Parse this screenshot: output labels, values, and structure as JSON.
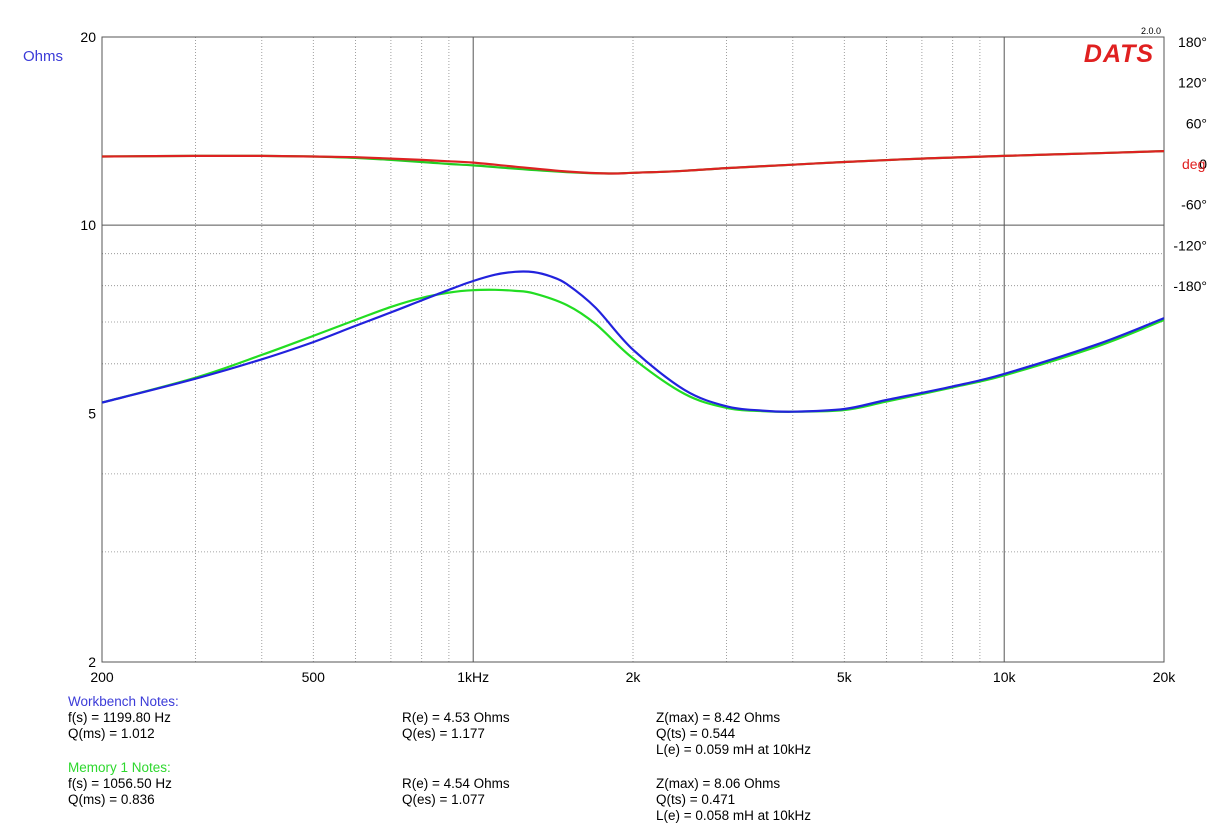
{
  "header": {
    "y_unit_label": "Ohms",
    "phase_unit_label": "deg",
    "version": "2.0.0",
    "logo_text": "DATS"
  },
  "chart_data": {
    "type": "line",
    "x_scale": "log",
    "y_scale": "log",
    "xlim": [
      200,
      20000
    ],
    "ylim": [
      2,
      20
    ],
    "phase_lim": [
      -180,
      180
    ],
    "grid": true,
    "x_tick_labels": [
      {
        "value": 200,
        "label": "200"
      },
      {
        "value": 500,
        "label": "500"
      },
      {
        "value": 1000,
        "label": "1kHz"
      },
      {
        "value": 2000,
        "label": "2k"
      },
      {
        "value": 5000,
        "label": "5k"
      },
      {
        "value": 10000,
        "label": "10k"
      },
      {
        "value": 20000,
        "label": "20k"
      }
    ],
    "y_tick_labels": [
      {
        "value": 20,
        "label": "20"
      },
      {
        "value": 10,
        "label": "10"
      },
      {
        "value": 5,
        "label": "5"
      },
      {
        "value": 2,
        "label": "2"
      }
    ],
    "phase_tick_labels": [
      {
        "value": 180,
        "label": "180°"
      },
      {
        "value": 120,
        "label": "120°"
      },
      {
        "value": 60,
        "label": "60°"
      },
      {
        "value": 0,
        "label": "0"
      },
      {
        "value": -60,
        "label": "-60°"
      },
      {
        "value": -120,
        "label": "-120°"
      },
      {
        "value": -180,
        "label": "-180°"
      }
    ],
    "colors": {
      "workbench_impedance": "#2222dd",
      "memory_impedance": "#22dd22",
      "workbench_phase": "#dd2222",
      "memory_phase": "#22cc22",
      "blue_text": "#3b3bd8",
      "green_text": "#2ed82e",
      "red_text": "#e02020"
    },
    "series": [
      {
        "key": "memory_impedance",
        "axis": "ohms",
        "x": [
          200,
          300,
          400,
          500,
          600,
          700,
          800,
          900,
          1000,
          1100,
          1200,
          1300,
          1500,
          1700,
          2000,
          2500,
          3000,
          3500,
          4000,
          5000,
          6000,
          8000,
          10000,
          15000,
          20000
        ],
        "y": [
          5.2,
          5.7,
          6.2,
          6.65,
          7.05,
          7.4,
          7.65,
          7.8,
          7.87,
          7.88,
          7.85,
          7.78,
          7.45,
          6.95,
          6.12,
          5.37,
          5.1,
          5.04,
          5.03,
          5.06,
          5.22,
          5.5,
          5.75,
          6.4,
          7.05
        ]
      },
      {
        "key": "workbench_impedance",
        "axis": "ohms",
        "x": [
          200,
          300,
          400,
          500,
          600,
          700,
          800,
          900,
          1000,
          1100,
          1200,
          1300,
          1400,
          1500,
          1700,
          2000,
          2500,
          3000,
          3500,
          4000,
          5000,
          6000,
          8000,
          10000,
          15000,
          20000
        ],
        "y": [
          5.2,
          5.68,
          6.1,
          6.5,
          6.9,
          7.25,
          7.58,
          7.88,
          8.14,
          8.33,
          8.42,
          8.41,
          8.28,
          8.05,
          7.38,
          6.32,
          5.45,
          5.13,
          5.05,
          5.03,
          5.08,
          5.25,
          5.52,
          5.78,
          6.45,
          7.1
        ]
      },
      {
        "key": "memory_phase",
        "axis": "phase",
        "x": [
          200,
          300,
          400,
          500,
          600,
          700,
          800,
          900,
          1000,
          1200,
          1500,
          1800,
          2000,
          2500,
          3000,
          4000,
          5000,
          7000,
          10000,
          15000,
          20000
        ],
        "y": [
          11,
          12,
          12,
          11,
          9,
          6,
          3,
          0,
          -2,
          -7,
          -12,
          -14,
          -13,
          -10,
          -6,
          -1,
          3,
          8,
          12,
          16,
          19
        ]
      },
      {
        "key": "workbench_phase",
        "axis": "phase",
        "x": [
          200,
          300,
          400,
          500,
          600,
          700,
          800,
          900,
          1000,
          1200,
          1500,
          1800,
          2000,
          2500,
          3000,
          4000,
          5000,
          7000,
          10000,
          15000,
          20000
        ],
        "y": [
          11,
          12,
          12,
          11,
          10,
          8,
          6,
          4,
          2,
          -4,
          -11,
          -14,
          -13,
          -10,
          -6,
          -1,
          3,
          8,
          12,
          16,
          19
        ]
      }
    ]
  },
  "workbench_notes": {
    "title": "Workbench Notes:",
    "fs": "f(s) = 1199.80 Hz",
    "qms": "Q(ms) = 1.012",
    "re": "R(e) = 4.53 Ohms",
    "qes": "Q(es) = 1.177",
    "zmax": "Z(max) = 8.42 Ohms",
    "qts": "Q(ts) = 0.544",
    "le": "L(e) = 0.059 mH at 10kHz"
  },
  "memory_notes": {
    "title": "Memory 1 Notes:",
    "fs": "f(s) = 1056.50 Hz",
    "qms": "Q(ms) = 0.836",
    "re": "R(e) = 4.54 Ohms",
    "qes": "Q(es) = 1.077",
    "zmax": "Z(max) = 8.06 Ohms",
    "qts": "Q(ts) = 0.471",
    "le": "L(e) = 0.058 mH at 10kHz"
  }
}
